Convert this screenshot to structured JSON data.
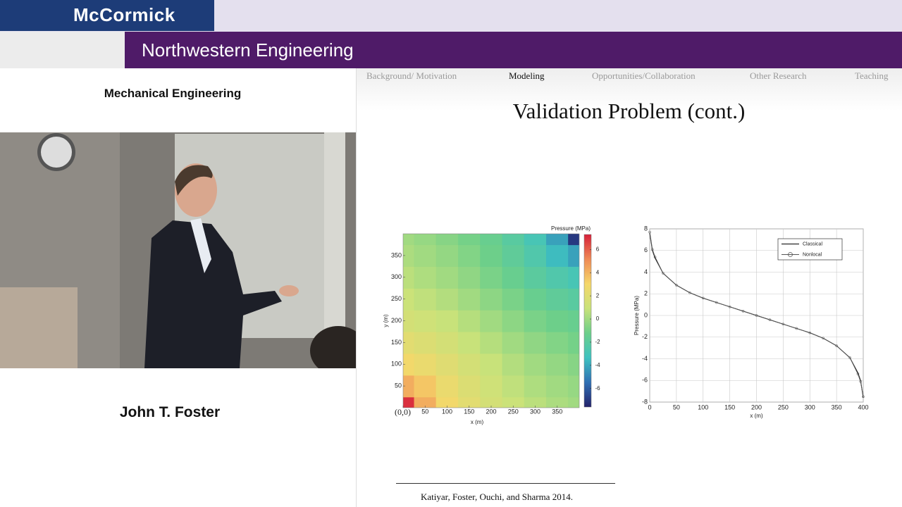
{
  "header": {
    "logo": "McCormick",
    "banner": "Northwestern Engineering"
  },
  "sidebar": {
    "department": "Mechanical Engineering",
    "speaker": "John T. Foster"
  },
  "slide": {
    "nav": [
      "Background/ Motivation",
      "Modeling",
      "Opportunities/Collaboration",
      "Other Research",
      "Teaching"
    ],
    "nav_active": 1,
    "title": "Validation Problem (cont.)",
    "citation": "Katiyar, Foster, Ouchi, and Sharma 2014."
  },
  "chart_data": [
    {
      "type": "contour",
      "xlabel": "x (m)",
      "ylabel": "y (m)",
      "colorbar_label": "Pressure (MPa)",
      "x": [
        0,
        50,
        100,
        150,
        200,
        250,
        300,
        350,
        400
      ],
      "y": [
        0,
        50,
        100,
        150,
        200,
        250,
        300,
        350,
        400
      ],
      "z": [
        [
          7.0,
          4.2,
          2.9,
          2.1,
          1.4,
          1.0,
          0.6,
          0.25,
          0
        ],
        [
          4.2,
          3.5,
          2.5,
          1.8,
          1.2,
          0.7,
          0.3,
          0,
          -0.25
        ],
        [
          2.9,
          2.5,
          2.0,
          1.4,
          0.9,
          0.4,
          0,
          -0.3,
          -0.6
        ],
        [
          2.1,
          1.8,
          1.4,
          0.9,
          0.45,
          0,
          -0.4,
          -0.7,
          -1.0
        ],
        [
          1.4,
          1.2,
          0.9,
          0.45,
          0,
          -0.45,
          -0.9,
          -1.2,
          -1.4
        ],
        [
          1.0,
          0.7,
          0.4,
          0,
          -0.45,
          -0.9,
          -1.4,
          -1.8,
          -2.1
        ],
        [
          0.6,
          0.3,
          0,
          -0.4,
          -0.9,
          -1.4,
          -2.0,
          -2.5,
          -2.9
        ],
        [
          0.25,
          0,
          -0.3,
          -0.7,
          -1.2,
          -1.8,
          -2.5,
          -3.5,
          -4.2
        ],
        [
          0,
          -0.25,
          -0.6,
          -1.0,
          -1.4,
          -2.1,
          -2.9,
          -4.2,
          -7.0
        ]
      ],
      "xlim": [
        0,
        400
      ],
      "ylim": [
        0,
        400
      ],
      "xticks": [
        {
          "value": 0,
          "label": "(0,0)"
        },
        50,
        100,
        150,
        200,
        250,
        300,
        350
      ],
      "yticks": [
        50,
        100,
        150,
        200,
        250,
        300,
        350
      ],
      "clim": [
        -7.6,
        7.3
      ],
      "cticks": [
        -6,
        -4,
        -2,
        0,
        2,
        4,
        6
      ],
      "colormap": [
        "#24236b",
        "#2f6fb4",
        "#3fc2c0",
        "#6ccf8a",
        "#c9e27a",
        "#f5d76a",
        "#ef8a55",
        "#d6203a"
      ]
    },
    {
      "type": "line",
      "xlabel": "x (m)",
      "ylabel": "Pressure (MPa)",
      "x": [
        0,
        5,
        10,
        25,
        50,
        75,
        100,
        125,
        150,
        175,
        200,
        225,
        250,
        275,
        300,
        325,
        350,
        375,
        390,
        395,
        400
      ],
      "series": [
        {
          "name": "Classical",
          "color": "#000000",
          "marker": "none",
          "values": [
            7.6,
            6.0,
            5.3,
            3.9,
            2.8,
            2.1,
            1.6,
            1.2,
            0.8,
            0.4,
            0,
            -0.4,
            -0.8,
            -1.2,
            -1.6,
            -2.1,
            -2.8,
            -3.9,
            -5.3,
            -6.0,
            -7.6
          ]
        },
        {
          "name": "Nonlocal",
          "color": "#555555",
          "marker": "circle",
          "values": [
            7.7,
            6.1,
            5.4,
            3.9,
            2.8,
            2.1,
            1.6,
            1.2,
            0.8,
            0.4,
            0,
            -0.4,
            -0.8,
            -1.2,
            -1.6,
            -2.1,
            -2.8,
            -3.9,
            -5.4,
            -6.1,
            -7.5
          ]
        }
      ],
      "xlim": [
        0,
        400
      ],
      "ylim": [
        -8,
        8
      ],
      "xticks": [
        0,
        50,
        100,
        150,
        200,
        250,
        300,
        350,
        400
      ],
      "yticks": [
        -8,
        -6,
        -4,
        -2,
        0,
        2,
        4,
        6,
        8
      ],
      "grid": true,
      "legend": "upper-right"
    }
  ]
}
